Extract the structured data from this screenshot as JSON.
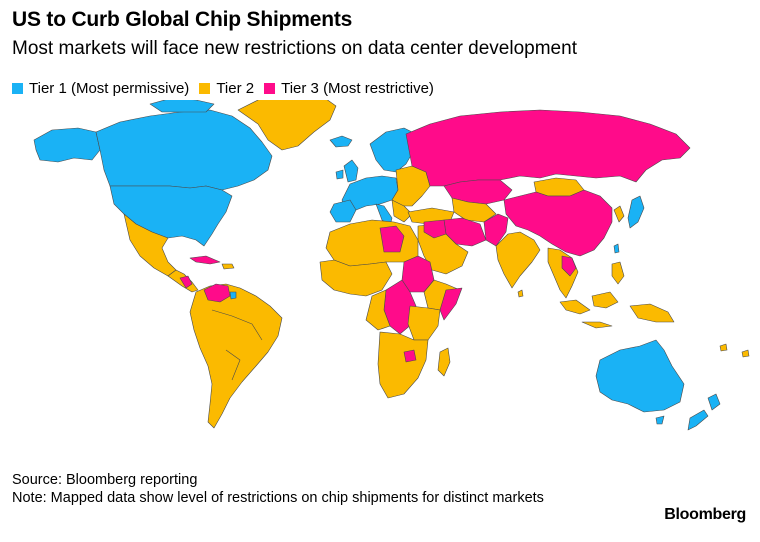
{
  "title": "US to Curb Global Chip Shipments",
  "subtitle": "Most markets will face new restrictions on data center development",
  "legend": [
    {
      "label": "Tier 1 (Most permissive)",
      "color": "#1ab2f5"
    },
    {
      "label": "Tier 2",
      "color": "#fbba00"
    },
    {
      "label": "Tier 3 (Most restrictive)",
      "color": "#ff0b8a"
    }
  ],
  "tiers": {
    "tier1": "#1ab2f5",
    "tier2": "#fbba00",
    "tier3": "#ff0b8a"
  },
  "footer": {
    "source": "Source: Bloomberg reporting",
    "note": "Note: Mapped data show level of restrictions on chip shipments for distinct markets"
  },
  "brand": "Bloomberg"
}
